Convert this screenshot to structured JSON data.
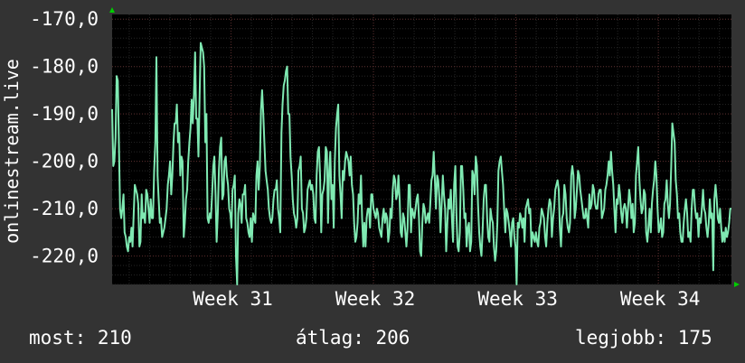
{
  "colors": {
    "background": "#333333",
    "plot_background": "#000000",
    "series": "#7fe9b2",
    "grid_major": "#5a2c2c",
    "grid_minor": "#262626",
    "arrow": "#00cc00"
  },
  "footer": {
    "current": "most: 210",
    "average": "átlag: 206",
    "best": "legjobb: 175"
  },
  "chart_data": {
    "type": "line",
    "ylabel": "onlinestream.live",
    "ylim": [
      -226,
      -169
    ],
    "yticks": [
      -170,
      -180,
      -190,
      -200,
      -210,
      -220
    ],
    "ytick_labels": [
      "-170,0",
      "-180,0",
      "-190,0",
      "-200,0",
      "-210,0",
      "-220,0"
    ],
    "xlim": [
      0,
      100
    ],
    "xticks": [
      19.2,
      42.2,
      65.2,
      88.2
    ],
    "xtick_labels": [
      "Week 31",
      "Week 32",
      "Week 33",
      "Week 34"
    ],
    "grid": true,
    "series": [
      {
        "values": [
          -189,
          -201,
          -200,
          -195,
          -182,
          -183,
          -196,
          -210,
          -212,
          -210,
          -207,
          -215,
          -216,
          -218,
          -219,
          -216,
          -217,
          -214,
          -218,
          -211,
          -205,
          -206,
          -207,
          -209,
          -218,
          -217,
          -207,
          -212,
          -211,
          -213,
          -206,
          -207,
          -210,
          -213,
          -208,
          -212,
          -212,
          -202,
          -196,
          -178,
          -203,
          -208,
          -213,
          -212,
          -216,
          -215,
          -214,
          -212,
          -210,
          -205,
          -203,
          -200,
          -207,
          -203,
          -196,
          -192,
          -192,
          -188,
          -196,
          -194,
          -203,
          -199,
          -200,
          -216,
          -213,
          -208,
          -206,
          -200,
          -196,
          -193,
          -187,
          -192,
          -186,
          -177,
          -191,
          -191,
          -199,
          -186,
          -175,
          -176,
          -177,
          -180,
          -196,
          -190,
          -212,
          -213,
          -211,
          -212,
          -207,
          -201,
          -199,
          -207,
          -217,
          -211,
          -202,
          -197,
          -195,
          -208,
          -207,
          -200,
          -199,
          -203,
          -205,
          -210,
          -211,
          -214,
          -206,
          -205,
          -203,
          -220,
          -229,
          -211,
          -208,
          -209,
          -213,
          -207,
          -207,
          -205,
          -212,
          -213,
          -215,
          -216,
          -212,
          -217,
          -211,
          -212,
          -213,
          -203,
          -200,
          -206,
          -201,
          -189,
          -185,
          -190,
          -196,
          -202,
          -204,
          -206,
          -210,
          -212,
          -213,
          -212,
          -208,
          -206,
          -206,
          -204,
          -210,
          -212,
          -215,
          -194,
          -188,
          -184,
          -183,
          -181,
          -180,
          -190,
          -190,
          -199,
          -203,
          -208,
          -211,
          -212,
          -214,
          -212,
          -202,
          -201,
          -199,
          -210,
          -211,
          -215,
          -214,
          -212,
          -206,
          -205,
          -204,
          -206,
          -205,
          -207,
          -212,
          -213,
          -203,
          -198,
          -197,
          -203,
          -215,
          -207,
          -206,
          -204,
          -197,
          -198,
          -213,
          -202,
          -198,
          -208,
          -205,
          -214,
          -200,
          -193,
          -190,
          -188,
          -203,
          -207,
          -212,
          -202,
          -204,
          -200,
          -198,
          -199,
          -200,
          -203,
          -199,
          -205,
          -207,
          -213,
          -217,
          -216,
          -213,
          -207,
          -209,
          -203,
          -212,
          -218,
          -213,
          -218,
          -212,
          -210,
          -210,
          -214,
          -207,
          -207,
          -210,
          -211,
          -212,
          -210,
          -211,
          -214,
          -215,
          -216,
          -212,
          -210,
          -213,
          -211,
          -212,
          -217,
          -215,
          -210,
          -212,
          -206,
          -203,
          -204,
          -208,
          -207,
          -203,
          -208,
          -215,
          -216,
          -211,
          -212,
          -215,
          -218,
          -214,
          -205,
          -205,
          -215,
          -210,
          -211,
          -212,
          -210,
          -208,
          -207,
          -212,
          -219,
          -220,
          -213,
          -209,
          -210,
          -213,
          -212,
          -211,
          -213,
          -209,
          -204,
          -203,
          -198,
          -204,
          -210,
          -203,
          -204,
          -208,
          -215,
          -209,
          -203,
          -207,
          -210,
          -219,
          -213,
          -208,
          -210,
          -206,
          -212,
          -217,
          -205,
          -201,
          -211,
          -218,
          -219,
          -215,
          -201,
          -201,
          -206,
          -212,
          -211,
          -218,
          -214,
          -213,
          -219,
          -217,
          -202,
          -203,
          -207,
          -199,
          -201,
          -209,
          -215,
          -218,
          -220,
          -215,
          -208,
          -205,
          -205,
          -212,
          -216,
          -217,
          -210,
          -212,
          -213,
          -218,
          -221,
          -219,
          -213,
          -202,
          -200,
          -199,
          -202,
          -205,
          -210,
          -215,
          -210,
          -211,
          -213,
          -215,
          -218,
          -213,
          -212,
          -216,
          -218,
          -226,
          -213,
          -214,
          -211,
          -212,
          -214,
          -212,
          -217,
          -210,
          -209,
          -208,
          -211,
          -210,
          -218,
          -215,
          -216,
          -217,
          -215,
          -217,
          -218,
          -214,
          -213,
          -210,
          -211,
          -212,
          -216,
          -218,
          -213,
          -210,
          -208,
          -209,
          -216,
          -212,
          -210,
          -206,
          -205,
          -204,
          -206,
          -214,
          -218,
          -212,
          -211,
          -205,
          -207,
          -212,
          -214,
          -215,
          -213,
          -203,
          -201,
          -203,
          -212,
          -210,
          -206,
          -202,
          -203,
          -206,
          -208,
          -210,
          -212,
          -212,
          -210,
          -212,
          -214,
          -207,
          -210,
          -209,
          -205,
          -206,
          -209,
          -210,
          -210,
          -207,
          -206,
          -206,
          -212,
          -211,
          -210,
          -206,
          -205,
          -203,
          -200,
          -203,
          -198,
          -202,
          -205,
          -210,
          -215,
          -208,
          -209,
          -205,
          -207,
          -211,
          -213,
          -210,
          -209,
          -210,
          -214,
          -210,
          -206,
          -208,
          -212,
          -209,
          -215,
          -213,
          -203,
          -200,
          -197,
          -204,
          -208,
          -211,
          -210,
          -206,
          -207,
          -215,
          -217,
          -214,
          -210,
          -215,
          -209,
          -206,
          -204,
          -200,
          -203,
          -210,
          -215,
          -214,
          -212,
          -216,
          -215,
          -209,
          -208,
          -204,
          -209,
          -212,
          -209,
          -201,
          -192,
          -194,
          -196,
          -204,
          -207,
          -212,
          -211,
          -215,
          -217,
          -217,
          -213,
          -210,
          -208,
          -211,
          -216,
          -215,
          -217,
          -210,
          -206,
          -206,
          -210,
          -212,
          -211,
          -216,
          -212,
          -213,
          -210,
          -206,
          -210,
          -211,
          -214,
          -216,
          -213,
          -208,
          -212,
          -211,
          -223,
          -208,
          -205,
          -208,
          -212,
          -213,
          -210,
          -214,
          -217,
          -215,
          -217,
          -214,
          -216,
          -215,
          -213,
          -210,
          -210
        ]
      }
    ],
    "footer_stats": {
      "current": 210,
      "average": 206,
      "best": 175
    }
  }
}
